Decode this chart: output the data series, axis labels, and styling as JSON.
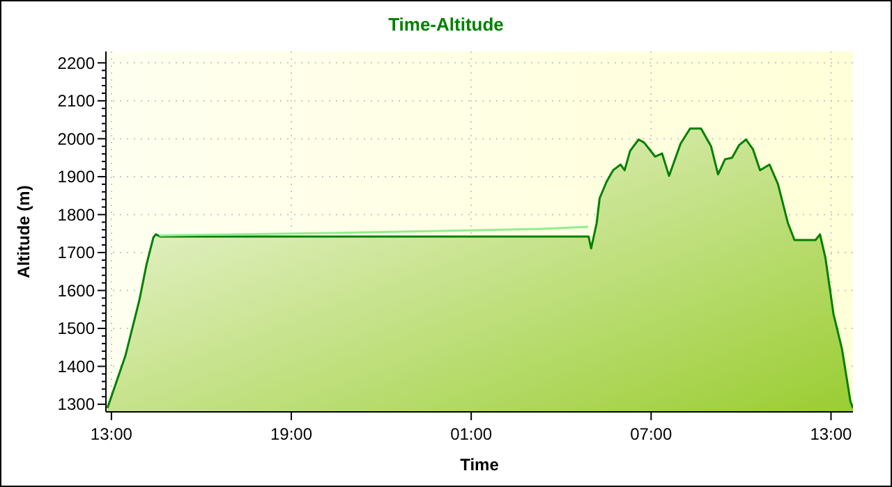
{
  "chart_data": {
    "type": "area",
    "title": "Time-Altitude",
    "xlabel": "Time",
    "ylabel": "Altitude (m)",
    "xlim": [
      "2000-01-01T12:49",
      "2000-01-02T13:44"
    ],
    "xticks": [
      {
        "value": "2000-01-01T13:00",
        "label": "13:00"
      },
      {
        "value": "2000-01-01T19:00",
        "label": "19:00"
      },
      {
        "value": "2000-01-02T01:00",
        "label": "01:00"
      },
      {
        "value": "2000-01-02T07:00",
        "label": "07:00"
      },
      {
        "value": "2000-01-02T13:00",
        "label": "13:00"
      }
    ],
    "ylim": [
      1280,
      2230
    ],
    "yticks": [
      1300,
      1400,
      1500,
      1600,
      1700,
      1800,
      1900,
      2000,
      2100,
      2200
    ],
    "grid": true,
    "series": [
      {
        "color": "#008000",
        "x": [
          "2000-01-01T12:52",
          "2000-01-01T13:28",
          "2000-01-01T13:56",
          "2000-01-01T14:10",
          "2000-01-01T14:24",
          "2000-01-01T14:29",
          "2000-01-01T14:38",
          "2000-01-02T04:55",
          "2000-01-02T05:00",
          "2000-01-02T05:11",
          "2000-01-02T05:17",
          "2000-01-02T05:31",
          "2000-01-02T05:44",
          "2000-01-02T05:59",
          "2000-01-02T06:07",
          "2000-01-02T06:18",
          "2000-01-02T06:35",
          "2000-01-02T06:46",
          "2000-01-02T06:55",
          "2000-01-02T07:08",
          "2000-01-02T07:22",
          "2000-01-02T07:36",
          "2000-01-02T07:59",
          "2000-01-02T08:18",
          "2000-01-02T08:40",
          "2000-01-02T09:00",
          "2000-01-02T09:14",
          "2000-01-02T09:28",
          "2000-01-02T09:42",
          "2000-01-02T09:56",
          "2000-01-02T10:10",
          "2000-01-02T10:24",
          "2000-01-02T10:38",
          "2000-01-02T10:57",
          "2000-01-02T11:14",
          "2000-01-02T11:34",
          "2000-01-02T11:47",
          "2000-01-02T12:29",
          "2000-01-02T12:38",
          "2000-01-02T12:49",
          "2000-01-02T13:05",
          "2000-01-02T13:22",
          "2000-01-02T13:39",
          "2000-01-02T13:44"
        ],
        "values": [
          1290,
          1428,
          1575,
          1667,
          1740,
          1748,
          1742,
          1742,
          1711,
          1777,
          1843,
          1887,
          1917,
          1932,
          1917,
          1968,
          1998,
          1990,
          1975,
          1953,
          1961,
          1902,
          1987,
          2027,
          2027,
          1980,
          1906,
          1946,
          1950,
          1983,
          1998,
          1972,
          1917,
          1932,
          1880,
          1777,
          1733,
          1733,
          1748,
          1685,
          1538,
          1446,
          1307,
          1290
        ]
      },
      {
        "type": "line",
        "color": "#90ee90",
        "x": [
          "2000-01-01T14:36",
          "2000-01-01T17:18",
          "2000-01-01T20:36",
          "2000-01-01T23:54",
          "2000-01-02T03:12",
          "2000-01-02T04:54"
        ],
        "values": [
          1745,
          1748,
          1752,
          1757,
          1762,
          1768
        ]
      }
    ]
  }
}
